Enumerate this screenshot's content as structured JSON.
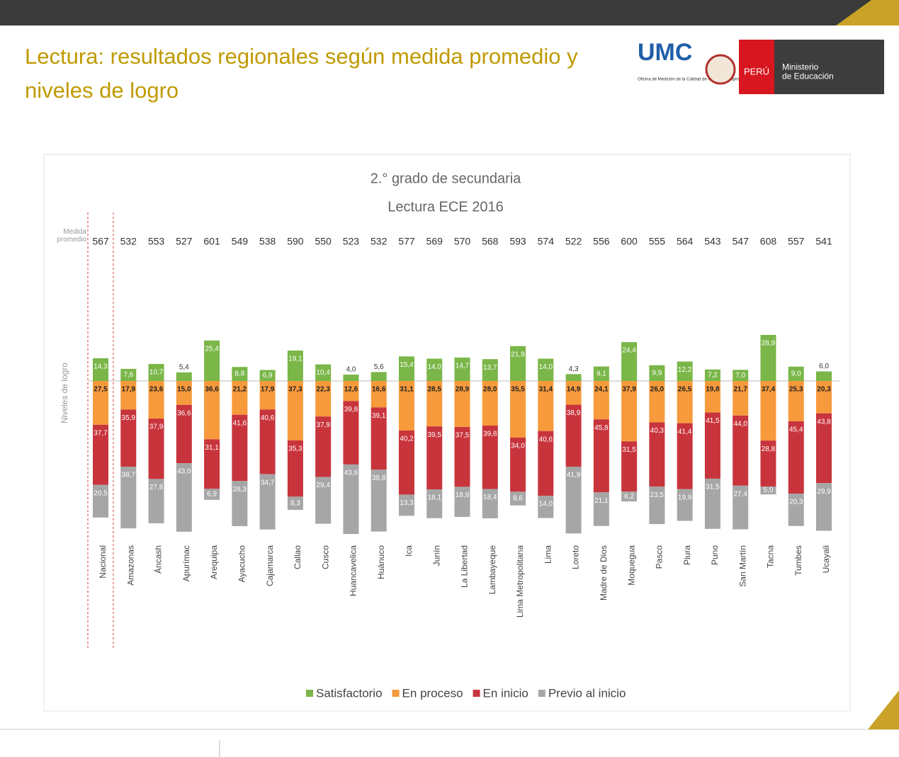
{
  "header": {
    "title": "Lectura: resultados regionales según medida promedio y niveles de logro",
    "logo": "UMC",
    "logo_sub": "Oficina de Medición de la Calidad de los Aprendizajes",
    "country": "PERÚ",
    "ministry": "Ministerio de Educación"
  },
  "chart_data": {
    "type": "diverging_bar",
    "title": "2.° grado de secundaria",
    "subtitle": "Lectura ECE 2016",
    "measure_label": "Medida promedio",
    "axis_label": "Niveles de logro",
    "categories": [
      "Nacional",
      "Amazonas",
      "Áncash",
      "Apurímac",
      "Arequipa",
      "Ayacucho",
      "Cajamarca",
      "Callao",
      "Cusco",
      "Huancavelica",
      "Huánuco",
      "Ica",
      "Junín",
      "La Libertad",
      "Lambayeque",
      "Lima Metropolitana",
      "Lima",
      "Loreto",
      "Madre de Dios",
      "Moquegua",
      "Pasco",
      "Piura",
      "Puno",
      "San Martín",
      "Tacna",
      "Tumbes",
      "Ucayali"
    ],
    "measures": [
      567,
      532,
      553,
      527,
      601,
      549,
      538,
      590,
      550,
      523,
      532,
      577,
      569,
      570,
      568,
      593,
      574,
      522,
      556,
      600,
      555,
      564,
      543,
      547,
      608,
      557,
      541
    ],
    "series": [
      {
        "name": "Satisfactorio",
        "color": "#7ab648",
        "values": [
          14.3,
          7.6,
          10.7,
          5.4,
          25.4,
          8.8,
          6.9,
          19.1,
          10.4,
          4.0,
          5.6,
          15.4,
          14.0,
          14.7,
          13.7,
          21.9,
          14.0,
          4.3,
          9.1,
          24.4,
          9.9,
          12.2,
          7.2,
          7.0,
          28.9,
          9.0,
          6.0
        ],
        "value_labels": [
          "14,3",
          "7,6",
          "10,7",
          "5,4",
          "25,4",
          "8,8",
          "6,9",
          "19,1",
          "10,4",
          "4,0",
          "5,6",
          "15,4",
          "14,0",
          "14,7",
          "13,7",
          "21,9",
          "14,0",
          "4,3",
          "9,1",
          "24,4",
          "9,9",
          "12,2",
          "7,2",
          "7,0",
          "28,9",
          "9,0",
          "6,0"
        ]
      },
      {
        "name": "En proceso",
        "color": "#f79a3c",
        "values": [
          27.5,
          17.9,
          23.6,
          15.0,
          36.6,
          21.2,
          17.9,
          37.3,
          22.3,
          12.6,
          16.6,
          31.1,
          28.5,
          28.9,
          28.0,
          35.5,
          31.4,
          14.9,
          24.1,
          37.9,
          26.0,
          26.5,
          19.8,
          21.7,
          37.4,
          25.3,
          20.3
        ],
        "value_labels": [
          "27,5",
          "17,9",
          "23,6",
          "15,0",
          "36,6",
          "21,2",
          "17,9",
          "37,3",
          "22,3",
          "12,6",
          "16,6",
          "31,1",
          "28,5",
          "28,9",
          "28,0",
          "35,5",
          "31,4",
          "14,9",
          "24,1",
          "37,9",
          "26,0",
          "26,5",
          "19,8",
          "21,7",
          "37,4",
          "25,3",
          "20,3"
        ]
      },
      {
        "name": "En inicio",
        "color": "#c8343c",
        "values": [
          37.7,
          35.9,
          37.9,
          36.6,
          31.1,
          41.6,
          40.6,
          35.3,
          37.9,
          39.8,
          39.1,
          40.2,
          39.5,
          37.5,
          39.8,
          34.0,
          40.6,
          38.9,
          45.8,
          31.5,
          40.3,
          41.4,
          41.5,
          44.0,
          28.8,
          45.4,
          43.8
        ],
        "value_labels": [
          "37,7",
          "35,9",
          "37,9",
          "36,6",
          "31,1",
          "41,6",
          "40,6",
          "35,3",
          "37,9",
          "39,8",
          "39,1",
          "40,2",
          "39,5",
          "37,5",
          "39,8",
          "34,0",
          "40,6",
          "38,9",
          "45,8",
          "31,5",
          "40,3",
          "41,4",
          "41,5",
          "44,0",
          "28,8",
          "45,4",
          "43,8"
        ]
      },
      {
        "name": "Previo al inicio",
        "color": "#a6a6a6",
        "values": [
          20.5,
          38.7,
          27.8,
          43.0,
          6.9,
          28.3,
          34.7,
          8.3,
          29.4,
          43.6,
          38.8,
          13.3,
          18.1,
          18.9,
          18.4,
          8.6,
          14.0,
          41.9,
          21.1,
          6.2,
          23.5,
          19.9,
          31.5,
          27.4,
          5.0,
          20.3,
          29.9
        ],
        "value_labels": [
          "20,5",
          "38,7",
          "27,8",
          "43,0",
          "6,9",
          "28,3",
          "34,7",
          "8,3",
          "29,4",
          "43,6",
          "38,8",
          "13,3",
          "18,1",
          "18,9",
          "18,4",
          "8,6",
          "14,0",
          "41,9",
          "21,1",
          "6,2",
          "23,5",
          "19,9",
          "31,5",
          "27,4",
          "5,0",
          "20,3",
          "29,9"
        ]
      }
    ]
  }
}
